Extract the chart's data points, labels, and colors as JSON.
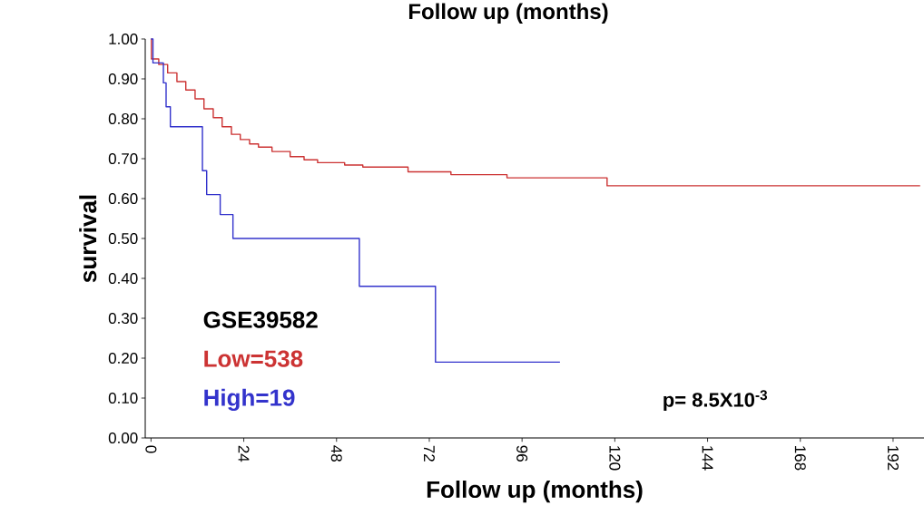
{
  "chart_data": {
    "type": "step",
    "title": "Follow up (months)",
    "xlabel": "Follow up (months)",
    "ylabel": "survival",
    "legend_title": "GSE39582",
    "legend": "bottom left",
    "xlim": [
      -1.5,
      200
    ],
    "ylim": [
      0,
      1.0
    ],
    "xticks": [
      0,
      24,
      48,
      72,
      96,
      120,
      144,
      168,
      192
    ],
    "yticks": [
      {
        "value": 0,
        "label": "0.00"
      },
      {
        "value": 0.1,
        "label": "0.10"
      },
      {
        "value": 0.2,
        "label": "0.20"
      },
      {
        "value": 0.3,
        "label": "0.30"
      },
      {
        "value": 0.4,
        "label": "0.40"
      },
      {
        "value": 0.5,
        "label": "0.50"
      },
      {
        "value": 0.6,
        "label": "0.60"
      },
      {
        "value": 0.7,
        "label": "0.70"
      },
      {
        "value": 0.8,
        "label": "0.80"
      },
      {
        "value": 0.9,
        "label": "0.90"
      },
      {
        "value": 1.0,
        "label": "1.00"
      }
    ],
    "series": [
      {
        "name": "Low=538",
        "color": "#cc3333",
        "x": [
          0,
          0.1,
          2.0,
          4.3,
          6.7,
          9.0,
          11.4,
          13.7,
          16.1,
          18.4,
          20.8,
          23.1,
          25.5,
          27.8,
          31.3,
          36.0,
          39.6,
          43.1,
          50.1,
          54.8,
          66.5,
          77.6,
          92.1,
          118,
          199
        ],
        "values": [
          1.0,
          0.95,
          0.936,
          0.915,
          0.893,
          0.872,
          0.85,
          0.825,
          0.803,
          0.78,
          0.761,
          0.748,
          0.737,
          0.729,
          0.718,
          0.705,
          0.697,
          0.69,
          0.684,
          0.679,
          0.667,
          0.66,
          0.652,
          0.632,
          0.632
        ]
      },
      {
        "name": "High=19",
        "color": "#3333cc",
        "x": [
          0,
          0.5,
          3.2,
          3.9,
          5.0,
          13.3,
          14.4,
          17.9,
          21.2,
          53.9,
          73.6,
          105.8
        ],
        "values": [
          1.0,
          0.94,
          0.89,
          0.83,
          0.78,
          0.67,
          0.61,
          0.56,
          0.5,
          0.38,
          0.19,
          0.19
        ]
      }
    ],
    "annotations": [
      "p= 8.5X10$^{-3}$"
    ]
  }
}
